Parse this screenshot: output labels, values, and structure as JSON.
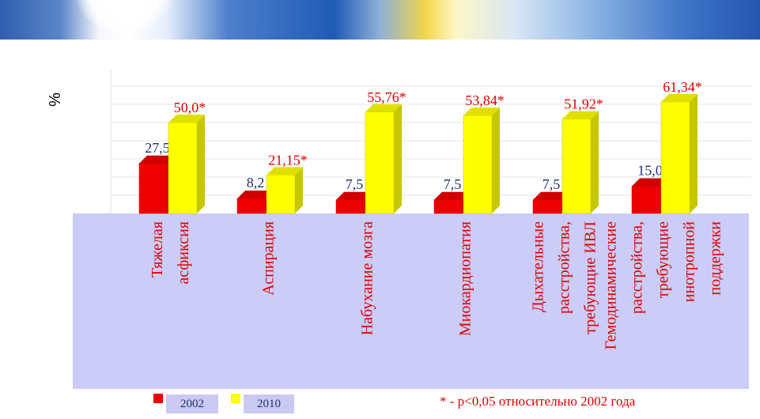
{
  "chart_data": {
    "type": "bar",
    "ylabel": "%",
    "ylim": [
      0,
      70
    ],
    "categories": [
      [
        "Тяжелая",
        "асфиксия"
      ],
      [
        "Аспирация"
      ],
      [
        "Набухание мозга"
      ],
      [
        "Миокардиопатия"
      ],
      [
        "Дыхательные",
        "расстройства,",
        "требующие ИВЛ"
      ],
      [
        "Гемодинамические",
        "расстройства,",
        "требующие",
        "инотропной",
        "поддержки"
      ]
    ],
    "series": [
      {
        "name": "2002",
        "color": "#ee0000",
        "values": [
          27.5,
          8.2,
          7.5,
          7.5,
          7.5,
          15.0
        ],
        "labels": [
          "27,5",
          "8,2",
          "7,5",
          "7,5",
          "7,5",
          "15,0"
        ]
      },
      {
        "name": "2010",
        "color": "#ffff00",
        "values": [
          50.0,
          21.15,
          55.76,
          53.84,
          51.92,
          61.34
        ],
        "labels": [
          "50,0*",
          "21,15*",
          "55,76*",
          "53,84*",
          "51,92*",
          "61,34*"
        ]
      }
    ],
    "grid": true,
    "legend": "bottom-left"
  },
  "legend": {
    "items": [
      {
        "label": "2002",
        "color": "#ee0000"
      },
      {
        "label": "2010",
        "color": "#ffff00"
      }
    ]
  },
  "footnote": "* - p<0,05 относительно 2002 года"
}
